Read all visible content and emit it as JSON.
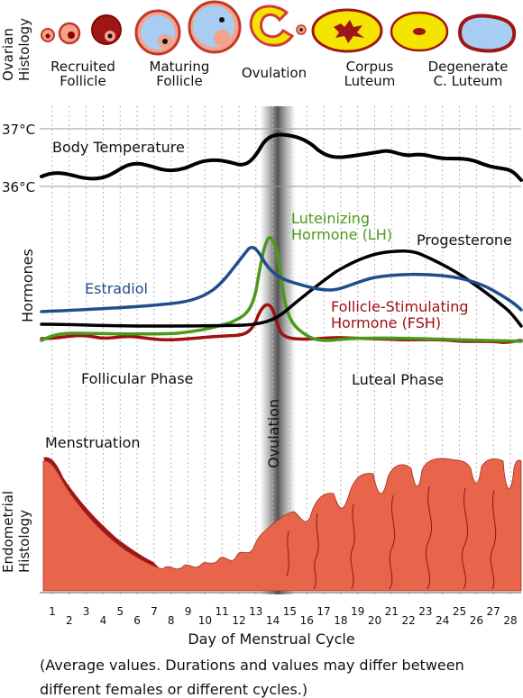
{
  "histology_top": {
    "row_label_line1": "Ovarian",
    "row_label_line2": "Histology",
    "stages": [
      {
        "line1": "Recruited",
        "line2": "Follicle"
      },
      {
        "line1": "Maturing",
        "line2": "Follicle"
      },
      {
        "line1": "Ovulation",
        "line2": ""
      },
      {
        "line1": "Corpus",
        "line2": "Luteum"
      },
      {
        "line1": "Degenerate",
        "line2": "C. Luteum"
      }
    ]
  },
  "temperature": {
    "label": "Body Temperature",
    "tick_high": "37°C",
    "tick_low": "36°C"
  },
  "hormones": {
    "row_label": "Hormones",
    "estradiol": "Estradiol",
    "lh_line1": "Luteinizing",
    "lh_line2": "Hormone (LH)",
    "progesterone": "Progesterone",
    "fsh_line1": "Follicle-Stimulating",
    "fsh_line2": "Hormone (FSH)"
  },
  "phases": {
    "follicular": "Follicular Phase",
    "luteal": "Luteal Phase",
    "ovulation": "Ovulation"
  },
  "endometrium": {
    "row_label_line1": "Endometrial",
    "row_label_line2": "Histology",
    "menstruation": "Menstruation"
  },
  "axis": {
    "days": [
      "1",
      "2",
      "3",
      "4",
      "5",
      "6",
      "7",
      "8",
      "9",
      "10",
      "11",
      "12",
      "13",
      "14",
      "15",
      "16",
      "17",
      "18",
      "19",
      "20",
      "21",
      "22",
      "23",
      "24",
      "25",
      "26",
      "27",
      "28"
    ],
    "title": "Day of Menstrual Cycle"
  },
  "footnote": {
    "line1": "(Average values. Durations and values may differ between",
    "line2": "different females or different cycles.)"
  },
  "colors": {
    "temperature": "#000000",
    "estradiol": "#1f4e8c",
    "lh": "#4a9a1a",
    "fsh": "#a01010",
    "progesterone": "#000000",
    "endometrium": "#e8644a",
    "endometrium_dark": "#a01515",
    "follicle_fill": "#f4a38a",
    "follicle_rim": "#c0392b",
    "luteum_fill": "#f5e400",
    "antrum": "#a7cdf2"
  }
}
